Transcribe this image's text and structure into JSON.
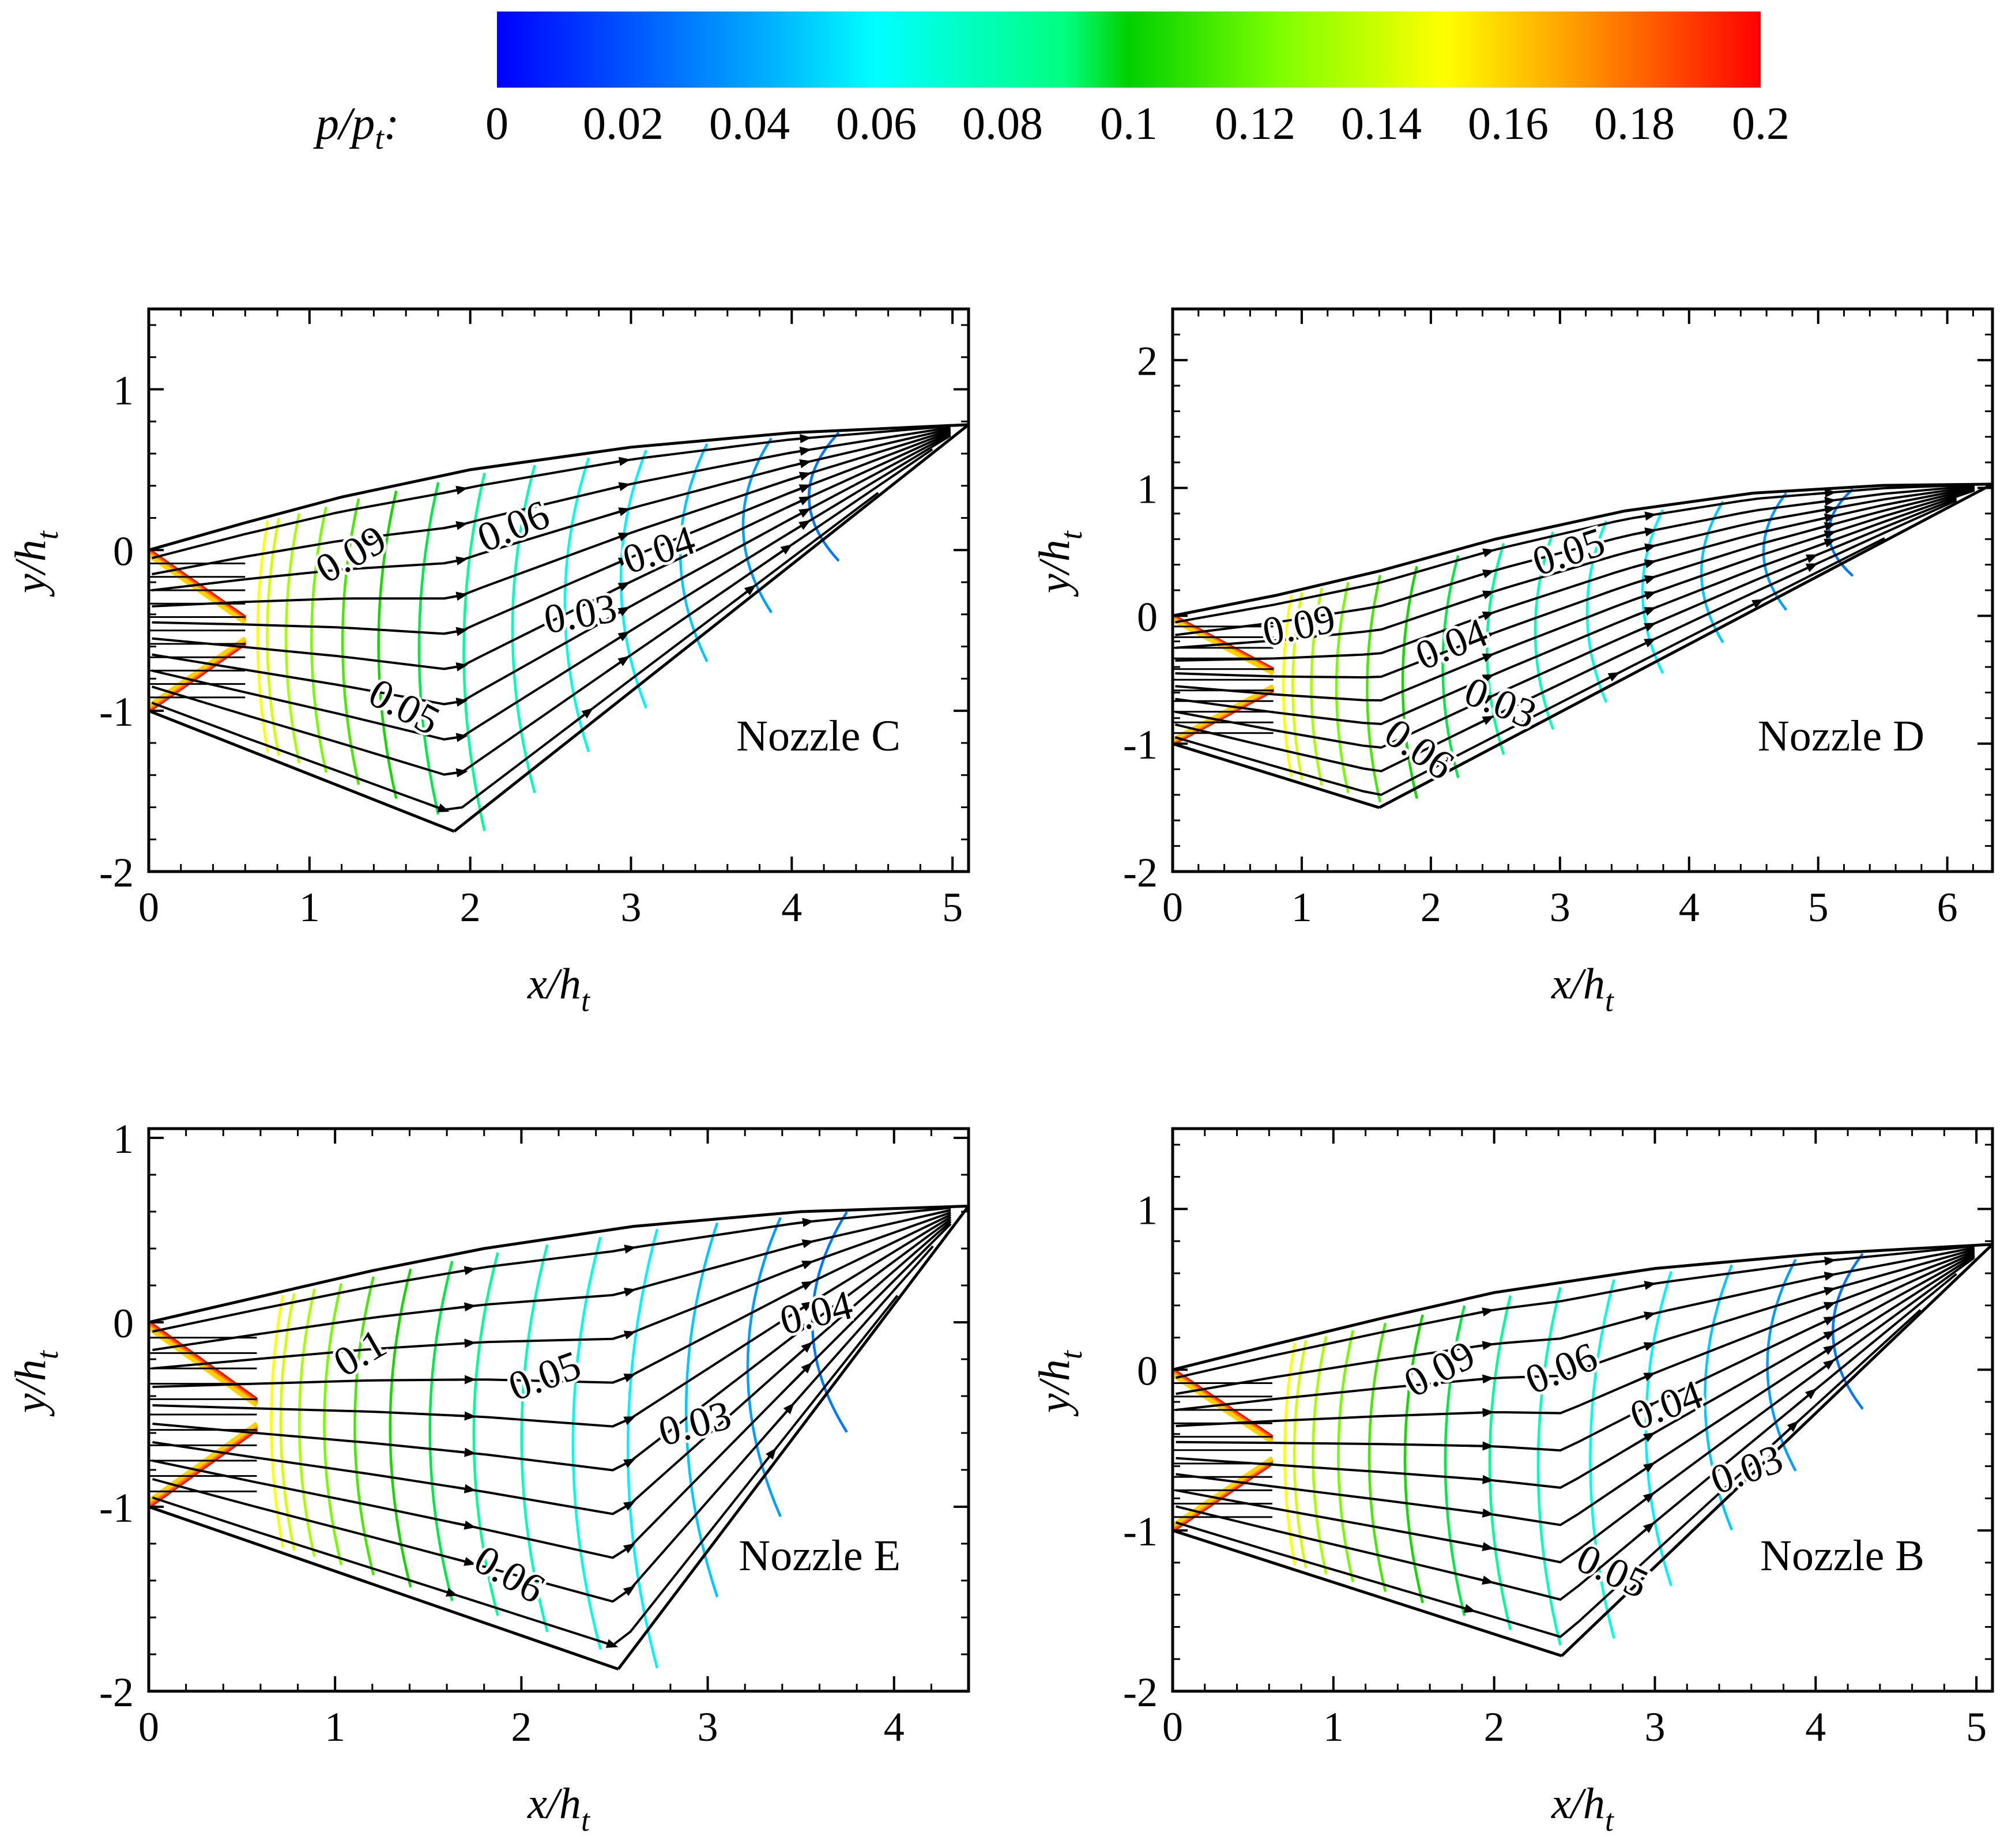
{
  "colorbar": {
    "variable": "p/p",
    "variable_sub": "t",
    "variable_suffix": ":",
    "ticks": [
      "0",
      "0.02",
      "0.04",
      "0.06",
      "0.08",
      "0.1",
      "0.12",
      "0.14",
      "0.16",
      "0.18",
      "0.2"
    ],
    "range": [
      0,
      0.2
    ],
    "colors": [
      "#0000ff",
      "#00a2ff",
      "#00ffff",
      "#00ff7f",
      "#00d000",
      "#7fff00",
      "#ffff00",
      "#ff9f00",
      "#ff0000"
    ]
  },
  "chart_data": [
    {
      "type": "contour",
      "title": "Nozzle C",
      "xlabel": "x/h",
      "xlabel_sub": "t",
      "ylabel": "y/h",
      "ylabel_sub": "t",
      "xlim": [
        0,
        5.1
      ],
      "ylim": [
        -2,
        1.5
      ],
      "xticks": [
        0,
        1,
        2,
        3,
        4,
        5
      ],
      "yticks": [
        -2,
        -1,
        0,
        1
      ],
      "throat_x": 0.6,
      "upper_wall": [
        [
          0,
          0
        ],
        [
          0.6,
          0.17
        ],
        [
          1.2,
          0.33
        ],
        [
          2,
          0.5
        ],
        [
          3,
          0.64
        ],
        [
          4,
          0.73
        ],
        [
          5.1,
          0.78
        ]
      ],
      "lower_wall": [
        [
          0,
          -1
        ],
        [
          1.9,
          -1.75
        ]
      ],
      "outflow": [
        [
          1.9,
          -1.75
        ],
        [
          5.1,
          0.78
        ]
      ],
      "contour_labels": [
        {
          "text": "0.09",
          "x": 1.3,
          "y": -0.1,
          "angle": -30
        },
        {
          "text": "0.06",
          "x": 2.3,
          "y": 0.07,
          "angle": -22
        },
        {
          "text": "0.04",
          "x": 3.2,
          "y": -0.08,
          "angle": -18
        },
        {
          "text": "0.03",
          "x": 2.7,
          "y": -0.48,
          "angle": -10
        },
        {
          "text": "0.05",
          "x": 1.55,
          "y": -1.05,
          "angle": 28
        }
      ]
    },
    {
      "type": "contour",
      "title": "Nozzle D",
      "xlabel": "x/h",
      "xlabel_sub": "t",
      "ylabel": "y/h",
      "ylabel_sub": "t",
      "xlim": [
        0,
        6.35
      ],
      "ylim": [
        -2,
        2.4
      ],
      "xticks": [
        0,
        1,
        2,
        3,
        4,
        5,
        6
      ],
      "yticks": [
        -2,
        -1,
        0,
        1,
        2
      ],
      "throat_x": 0.78,
      "upper_wall": [
        [
          0,
          0
        ],
        [
          0.8,
          0.16
        ],
        [
          1.6,
          0.35
        ],
        [
          2.5,
          0.6
        ],
        [
          3.5,
          0.82
        ],
        [
          4.5,
          0.96
        ],
        [
          5.5,
          1.02
        ],
        [
          6.35,
          1.03
        ]
      ],
      "lower_wall": [
        [
          0,
          -1
        ],
        [
          1.6,
          -1.5
        ]
      ],
      "outflow": [
        [
          1.6,
          -1.5
        ],
        [
          6.35,
          1.03
        ]
      ],
      "contour_labels": [
        {
          "text": "0.05",
          "x": 3.1,
          "y": 0.4,
          "angle": -18
        },
        {
          "text": "0.09",
          "x": 1.0,
          "y": -0.18,
          "angle": -12
        },
        {
          "text": "0.04",
          "x": 2.2,
          "y": -0.32,
          "angle": -22
        },
        {
          "text": "0.03",
          "x": 2.5,
          "y": -0.78,
          "angle": 22
        },
        {
          "text": "0.06",
          "x": 1.85,
          "y": -1.13,
          "angle": 35
        }
      ]
    },
    {
      "type": "contour",
      "title": "Nozzle E",
      "xlabel": "x/h",
      "xlabel_sub": "t",
      "ylabel": "y/h",
      "ylabel_sub": "t",
      "xlim": [
        0,
        4.4
      ],
      "ylim": [
        -2,
        1.05
      ],
      "xticks": [
        0,
        1,
        2,
        3,
        4
      ],
      "yticks": [
        -2,
        -1,
        0,
        1
      ],
      "throat_x": 0.58,
      "upper_wall": [
        [
          0,
          0
        ],
        [
          0.6,
          0.14
        ],
        [
          1.2,
          0.28
        ],
        [
          1.8,
          0.4
        ],
        [
          2.6,
          0.52
        ],
        [
          3.5,
          0.6
        ],
        [
          4.4,
          0.63
        ]
      ],
      "lower_wall": [
        [
          0,
          -1
        ],
        [
          2.52,
          -1.88
        ]
      ],
      "outflow": [
        [
          2.52,
          -1.88
        ],
        [
          4.4,
          0.63
        ]
      ],
      "contour_labels": [
        {
          "text": "0.1",
          "x": 1.17,
          "y": -0.23,
          "angle": -30
        },
        {
          "text": "0.05",
          "x": 2.15,
          "y": -0.36,
          "angle": -20
        },
        {
          "text": "0.04",
          "x": 3.6,
          "y": -0.02,
          "angle": -14
        },
        {
          "text": "0.03",
          "x": 2.95,
          "y": -0.62,
          "angle": -15
        },
        {
          "text": "0.06",
          "x": 1.9,
          "y": -1.43,
          "angle": 30
        }
      ]
    },
    {
      "type": "contour",
      "title": "Nozzle B",
      "xlabel": "x/h",
      "xlabel_sub": "t",
      "ylabel": "y/h",
      "ylabel_sub": "t",
      "xlim": [
        0,
        5.1
      ],
      "ylim": [
        -2,
        1.5
      ],
      "xticks": [
        0,
        1,
        2,
        3,
        4,
        5
      ],
      "yticks": [
        -2,
        -1,
        0,
        1
      ],
      "throat_x": 0.62,
      "upper_wall": [
        [
          0,
          0
        ],
        [
          0.6,
          0.15
        ],
        [
          1.3,
          0.32
        ],
        [
          2,
          0.48
        ],
        [
          3,
          0.63
        ],
        [
          4,
          0.72
        ],
        [
          5.1,
          0.78
        ]
      ],
      "lower_wall": [
        [
          0,
          -1
        ],
        [
          2.42,
          -1.78
        ]
      ],
      "outflow": [
        [
          2.42,
          -1.78
        ],
        [
          5.1,
          0.78
        ]
      ],
      "contour_labels": [
        {
          "text": "0.09",
          "x": 1.7,
          "y": -0.07,
          "angle": -28
        },
        {
          "text": "0.06",
          "x": 2.45,
          "y": -0.07,
          "angle": -22
        },
        {
          "text": "0.04",
          "x": 3.1,
          "y": -0.3,
          "angle": -20
        },
        {
          "text": "0.03",
          "x": 3.6,
          "y": -0.7,
          "angle": -20
        },
        {
          "text": "0.05",
          "x": 2.7,
          "y": -1.33,
          "angle": 25
        }
      ]
    }
  ]
}
